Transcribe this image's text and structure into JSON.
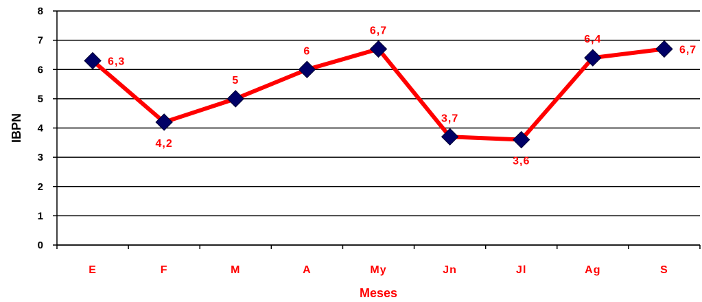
{
  "chart_data": {
    "type": "line",
    "categories": [
      "E",
      "F",
      "M",
      "A",
      "My",
      "Jn",
      "Jl",
      "Ag",
      "S"
    ],
    "series": [
      {
        "values": [
          6.3,
          4.2,
          5,
          6,
          6.7,
          3.7,
          3.6,
          6.4,
          6.7
        ],
        "labels": [
          "6,3",
          "4,2",
          "5",
          "6",
          "6,7",
          "3,7",
          "3,6",
          "6,4",
          "6,7"
        ]
      }
    ],
    "xlabel": "Meses",
    "ylabel": "IBPN",
    "ylim": [
      0,
      8
    ],
    "yticks": [
      "0",
      "1",
      "2",
      "3",
      "4",
      "5",
      "6",
      "7",
      "8"
    ],
    "grid": true,
    "colors": {
      "line": "#ff0000",
      "marker": "#000066",
      "labels": "#ff0000",
      "grid": "#000000"
    }
  }
}
